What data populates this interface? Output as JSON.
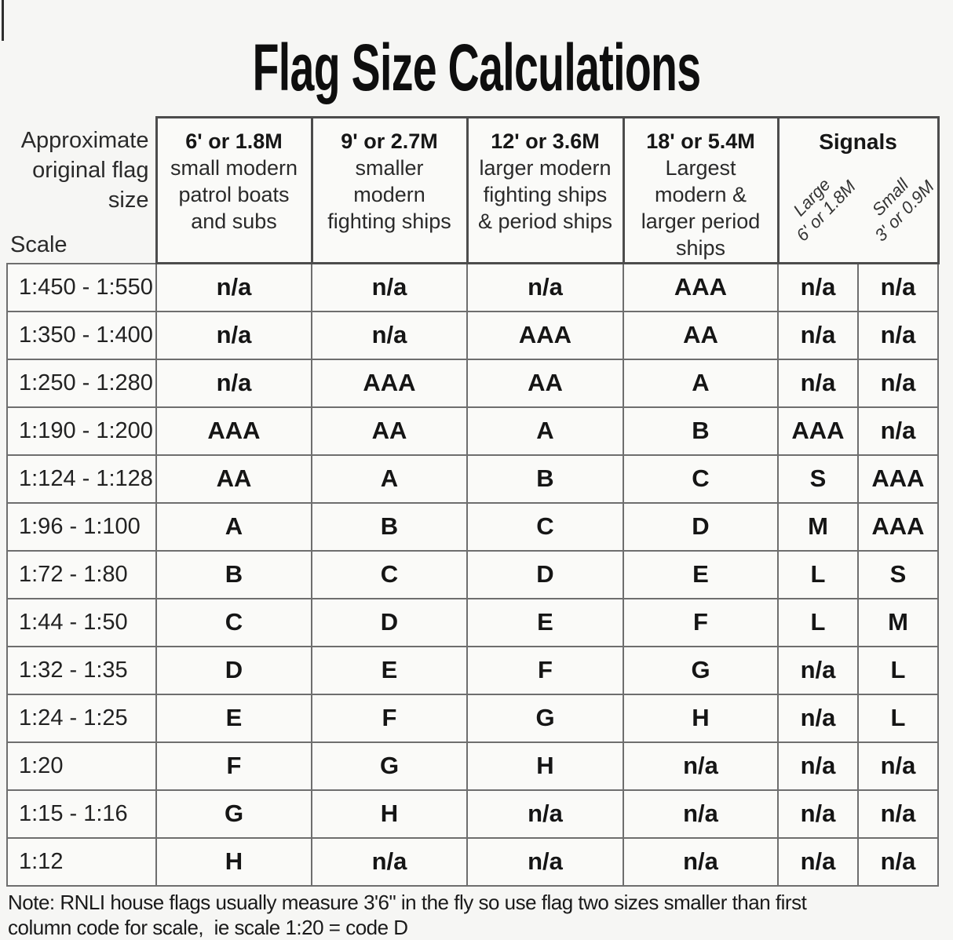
{
  "page": {
    "title": "Flag Size Calculations"
  },
  "table": {
    "corner": {
      "label": "Approximate original flag size",
      "scale_label": "Scale"
    },
    "columns": [
      {
        "size": "6' or 1.8M",
        "desc_lines": [
          "small modern",
          "patrol boats",
          "and subs"
        ]
      },
      {
        "size": "9' or 2.7M",
        "desc_lines": [
          "smaller",
          "modern",
          "fighting ships"
        ]
      },
      {
        "size": "12' or 3.6M",
        "desc_lines": [
          "larger modern",
          "fighting ships",
          "& period ships"
        ]
      },
      {
        "size": "18' or 5.4M",
        "desc_lines": [
          "Largest",
          "modern &",
          "larger period",
          "ships"
        ]
      }
    ],
    "signals": {
      "label": "Signals",
      "large": {
        "name": "Large",
        "size": "6' or 1.8M"
      },
      "small": {
        "name": "Small",
        "size": "3' or 0.9M"
      }
    },
    "rows": [
      {
        "scale": "1:450 - 1:550",
        "cells": [
          "n/a",
          "n/a",
          "n/a",
          "AAA",
          "n/a",
          "n/a"
        ]
      },
      {
        "scale": "1:350 - 1:400",
        "cells": [
          "n/a",
          "n/a",
          "AAA",
          "AA",
          "n/a",
          "n/a"
        ]
      },
      {
        "scale": "1:250 - 1:280",
        "cells": [
          "n/a",
          "AAA",
          "AA",
          "A",
          "n/a",
          "n/a"
        ]
      },
      {
        "scale": "1:190 - 1:200",
        "cells": [
          "AAA",
          "AA",
          "A",
          "B",
          "AAA",
          "n/a"
        ]
      },
      {
        "scale": "1:124 - 1:128",
        "cells": [
          "AA",
          "A",
          "B",
          "C",
          "S",
          "AAA"
        ]
      },
      {
        "scale": "1:96 - 1:100",
        "cells": [
          "A",
          "B",
          "C",
          "D",
          "M",
          "AAA"
        ]
      },
      {
        "scale": "1:72 - 1:80",
        "cells": [
          "B",
          "C",
          "D",
          "E",
          "L",
          "S"
        ]
      },
      {
        "scale": "1:44 - 1:50",
        "cells": [
          "C",
          "D",
          "E",
          "F",
          "L",
          "M"
        ]
      },
      {
        "scale": "1:32 - 1:35",
        "cells": [
          "D",
          "E",
          "F",
          "G",
          "n/a",
          "L"
        ]
      },
      {
        "scale": "1:24 - 1:25",
        "cells": [
          "E",
          "F",
          "G",
          "H",
          "n/a",
          "L"
        ]
      },
      {
        "scale": "1:20",
        "cells": [
          "F",
          "G",
          "H",
          "n/a",
          "n/a",
          "n/a"
        ]
      },
      {
        "scale": "1:15 - 1:16",
        "cells": [
          "G",
          "H",
          "n/a",
          "n/a",
          "n/a",
          "n/a"
        ]
      },
      {
        "scale": "1:12",
        "cells": [
          "H",
          "n/a",
          "n/a",
          "n/a",
          "n/a",
          "n/a"
        ]
      }
    ]
  },
  "note": {
    "line1": "Note: RNLI house flags usually measure 3'6\" in the fly so use flag two sizes smaller than first",
    "line2": "column code for scale,  ie scale 1:20 = code D"
  },
  "colors": {
    "background": "#f6f6f4",
    "cell_background": "#fafaf8",
    "body_grid": "#6e6e6e",
    "header_grid": "#4c4c4c",
    "text": "#1c1c1c"
  }
}
